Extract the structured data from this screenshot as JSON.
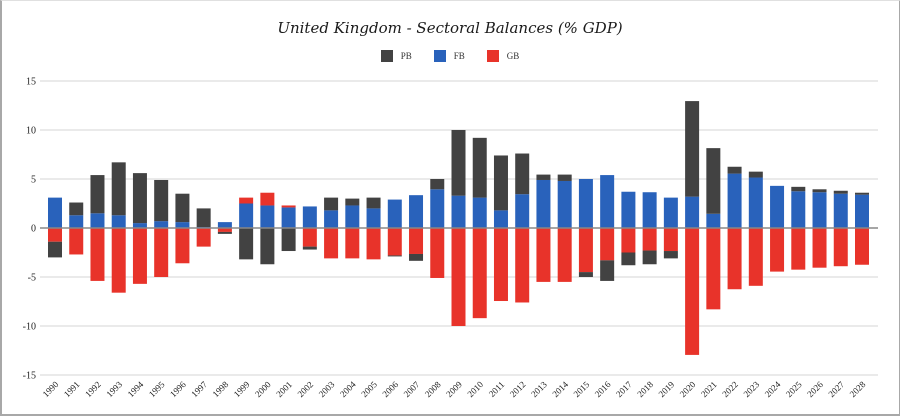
{
  "chart_data": {
    "type": "bar",
    "stacked": true,
    "title": "United Kingdom - Sectoral Balances (% GDP)",
    "xlabel": "",
    "ylabel": "",
    "ylim": [
      -15,
      15
    ],
    "yticks": [
      15,
      10,
      5,
      0,
      -5,
      -10,
      -15
    ],
    "ytick_labels": [
      "15",
      "10",
      "5",
      "0",
      "-5",
      "-10",
      "-15"
    ],
    "grid": true,
    "legend_position": "top-center",
    "categories": [
      "1990",
      "1991",
      "1992",
      "1993",
      "1994",
      "1995",
      "1996",
      "1997",
      "1998",
      "1999",
      "2000",
      "2001",
      "2002",
      "2003",
      "2004",
      "2005",
      "2006",
      "2007",
      "2008",
      "2009",
      "2010",
      "2011",
      "2012",
      "2013",
      "2014",
      "2015",
      "2016",
      "2017",
      "2018",
      "2019",
      "2020",
      "2021",
      "2022",
      "2023",
      "2024",
      "2025",
      "2026",
      "2027",
      "2028"
    ],
    "series": [
      {
        "name": "PB",
        "color": "#424242",
        "values": [
          -1.6,
          1.3,
          3.9,
          5.4,
          5.1,
          4.2,
          2.9,
          1.9,
          -0.2,
          -3.2,
          -3.7,
          -2.35,
          -0.3,
          1.3,
          0.7,
          1.1,
          -0.1,
          -0.7,
          1.05,
          6.7,
          6.1,
          5.6,
          4.15,
          0.55,
          0.65,
          -0.5,
          -2.1,
          -1.3,
          -1.4,
          -0.75,
          9.75,
          6.7,
          0.7,
          0.6,
          0.0,
          0.45,
          0.3,
          0.3,
          0.2
        ]
      },
      {
        "name": "FB",
        "color": "#2962bb",
        "values": [
          3.1,
          1.3,
          1.5,
          1.3,
          0.5,
          0.7,
          0.6,
          0.1,
          0.6,
          2.5,
          2.3,
          2.1,
          2.2,
          1.8,
          2.3,
          2.0,
          2.9,
          3.35,
          3.95,
          3.3,
          3.1,
          1.8,
          3.45,
          4.9,
          4.8,
          5.0,
          5.4,
          3.7,
          3.65,
          3.1,
          3.2,
          1.45,
          5.55,
          5.15,
          4.3,
          3.75,
          3.65,
          3.5,
          3.4
        ]
      },
      {
        "name": "GB",
        "color": "#e8332a",
        "values": [
          -1.4,
          -2.7,
          -5.4,
          -6.6,
          -5.7,
          -5.0,
          -3.6,
          -1.9,
          -0.4,
          0.6,
          1.3,
          0.2,
          -1.9,
          -3.1,
          -3.1,
          -3.2,
          -2.8,
          -2.65,
          -5.1,
          -10.0,
          -9.2,
          -7.45,
          -7.6,
          -5.5,
          -5.5,
          -4.5,
          -3.3,
          -2.5,
          -2.3,
          -2.35,
          -12.95,
          -8.3,
          -6.25,
          -5.9,
          -4.45,
          -4.25,
          -4.05,
          -3.9,
          -3.75
        ]
      }
    ]
  }
}
